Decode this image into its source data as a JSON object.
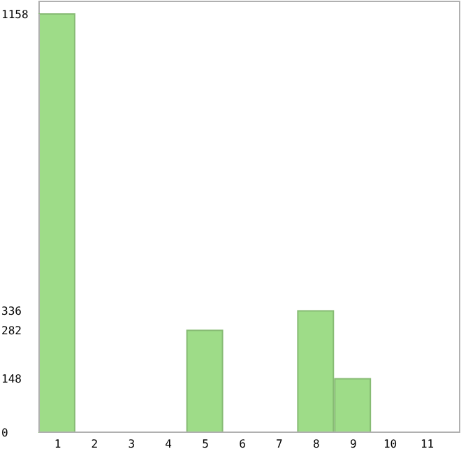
{
  "chart_data": {
    "type": "bar",
    "categories": [
      "1",
      "2",
      "3",
      "4",
      "5",
      "6",
      "7",
      "8",
      "9",
      "10",
      "11"
    ],
    "values": [
      1158,
      0,
      0,
      0,
      282,
      0,
      0,
      336,
      148,
      0,
      0
    ],
    "color": "#9edc88",
    "ylim": [
      0,
      1158
    ],
    "yticks": [
      0,
      148,
      282,
      336,
      1158
    ],
    "grid": false
  }
}
